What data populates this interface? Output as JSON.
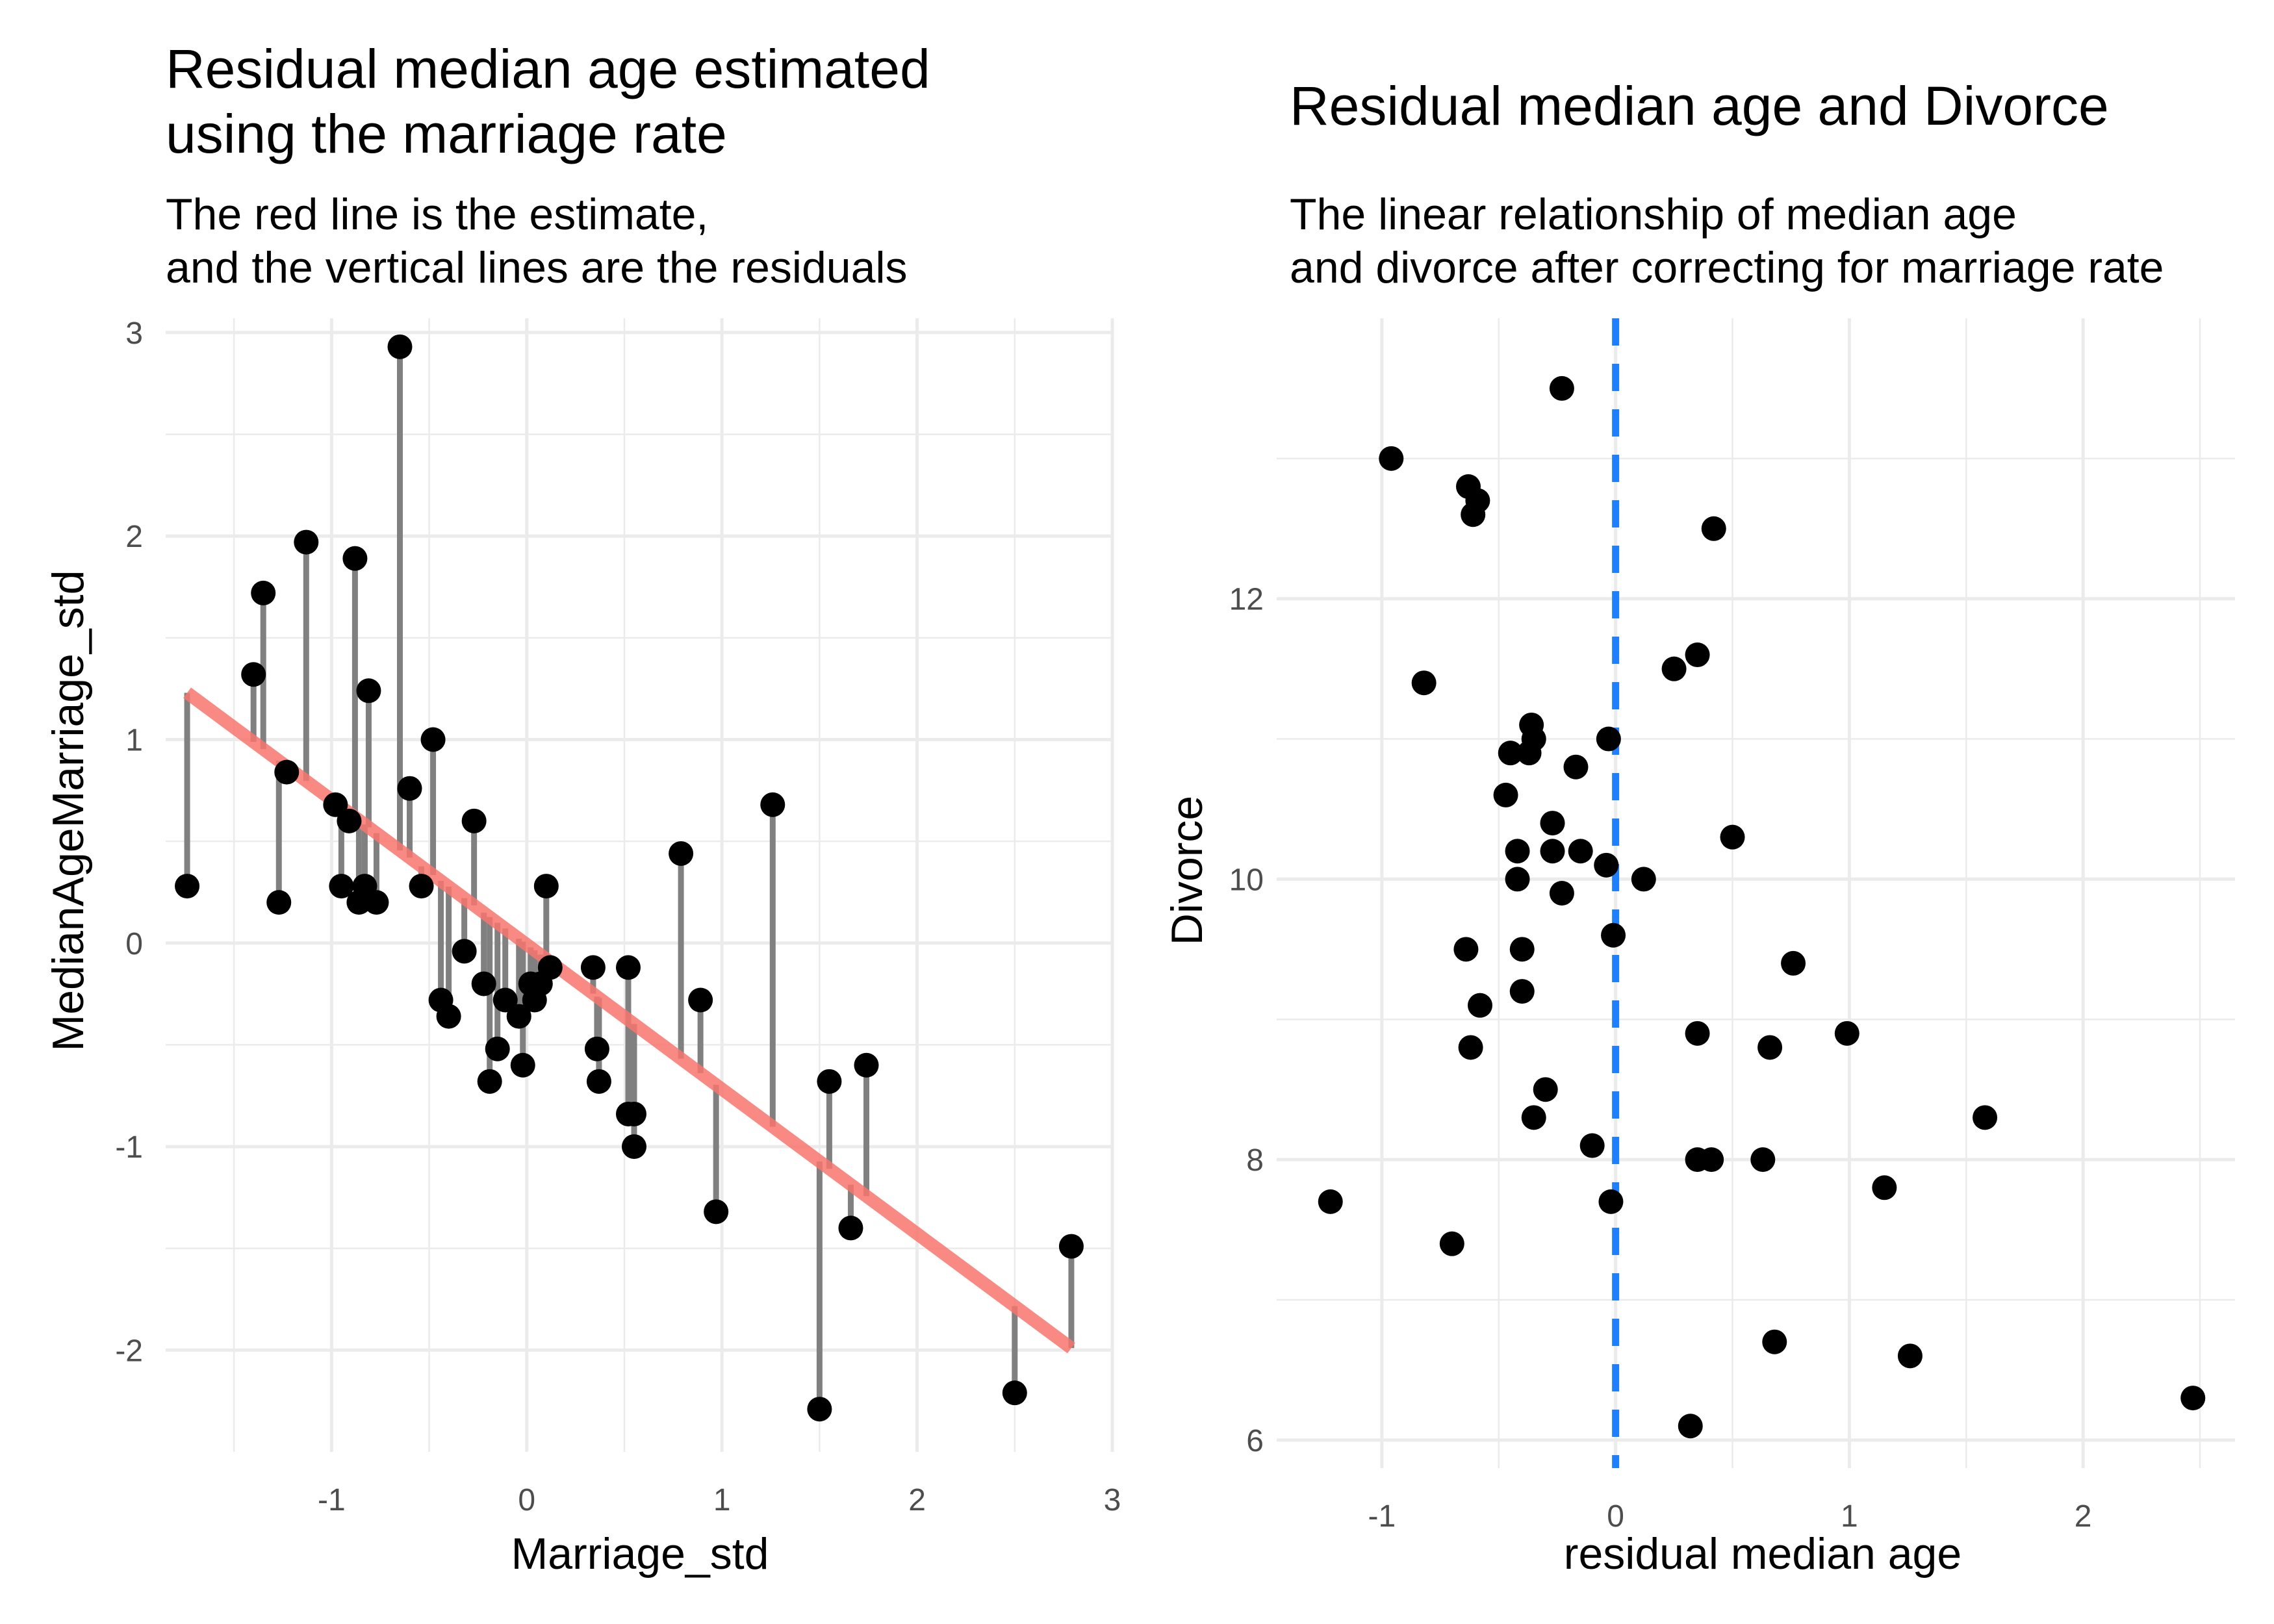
{
  "colors": {
    "residual_segment": "#808080",
    "fit_line": "#F8766D",
    "points": "#000000",
    "zero_line": "#1E7FFF",
    "grid": "#EBEBEB"
  },
  "chart_data": [
    {
      "type": "scatter",
      "title_lines": [
        "Residual median age estimated",
        "using the marriage rate"
      ],
      "subtitle_lines": [
        "The red line is the estimate,",
        "and the vertical lines are the residuals"
      ],
      "xlabel": "Marriage_std",
      "ylabel": "MedianAgeMarriage_std",
      "xlim": [
        -1.85,
        3.0
      ],
      "ylim": [
        -2.5,
        3.07
      ],
      "xticks": [
        -1,
        0,
        1,
        2,
        3
      ],
      "xtick_labels": [
        "-1",
        "0",
        "1",
        "2",
        "3"
      ],
      "yticks": [
        -2,
        -1,
        0,
        1,
        2,
        3
      ],
      "ytick_labels": [
        "-2",
        "-1",
        "0",
        "1",
        "2",
        "3"
      ],
      "grid": true,
      "fit_line": {
        "x": [
          -1.74,
          2.79
        ],
        "y": [
          1.23,
          -1.99
        ]
      },
      "points": {
        "x": [
          -1.74,
          -1.4,
          -1.35,
          -1.27,
          -1.23,
          -1.13,
          -0.98,
          -0.95,
          -0.91,
          -0.88,
          -0.86,
          -0.83,
          -0.81,
          -0.77,
          -0.65,
          -0.6,
          -0.54,
          -0.48,
          -0.44,
          -0.4,
          -0.32,
          -0.27,
          -0.22,
          -0.19,
          -0.15,
          -0.11,
          -0.04,
          -0.02,
          0.02,
          0.04,
          0.07,
          0.1,
          0.12,
          0.34,
          0.36,
          0.37,
          0.52,
          0.52,
          0.55,
          0.55,
          0.79,
          0.89,
          0.97,
          1.26,
          1.5,
          1.55,
          1.66,
          1.74,
          2.5,
          2.79
        ],
        "y": [
          0.28,
          1.32,
          1.72,
          0.2,
          0.84,
          1.97,
          0.68,
          0.28,
          0.6,
          1.89,
          0.2,
          0.28,
          1.24,
          0.2,
          2.93,
          0.76,
          0.28,
          1.0,
          -0.28,
          -0.36,
          -0.04,
          0.6,
          -0.2,
          -0.68,
          -0.52,
          -0.28,
          -0.36,
          -0.6,
          -0.2,
          -0.28,
          -0.2,
          0.28,
          -0.12,
          -0.12,
          -0.52,
          -0.68,
          -0.12,
          -0.84,
          -1.0,
          -0.84,
          0.44,
          -0.28,
          -1.32,
          0.68,
          -2.29,
          -0.68,
          -1.4,
          -0.6,
          -2.21,
          -1.49
        ]
      }
    },
    {
      "type": "scatter",
      "title_lines": [
        "Residual median age and Divorce"
      ],
      "subtitle_lines": [
        "The linear relationship of median age",
        "and divorce after correcting for marriage rate"
      ],
      "xlabel": "residual median age",
      "ylabel": "Divorce",
      "xlim": [
        -1.45,
        2.65
      ],
      "ylim": [
        5.8,
        14.0
      ],
      "xticks": [
        -1,
        0,
        1,
        2
      ],
      "xtick_labels": [
        "-1",
        "0",
        "1",
        "2"
      ],
      "yticks": [
        6,
        8,
        10,
        12
      ],
      "ytick_labels": [
        "6",
        "8",
        "10",
        "12"
      ],
      "grid": true,
      "vline": {
        "x": 0,
        "style": "dashed"
      },
      "points": {
        "x": [
          -0.23,
          -0.96,
          -0.63,
          -0.59,
          -0.61,
          0.42,
          -0.82,
          0.25,
          0.35,
          -0.36,
          -0.45,
          -0.35,
          -0.37,
          -0.03,
          -0.17,
          -0.47,
          -0.27,
          -0.42,
          -0.27,
          -0.15,
          0.5,
          -0.04,
          -0.42,
          0.12,
          -0.23,
          -0.64,
          -0.4,
          -0.01,
          0.76,
          -0.4,
          -0.58,
          0.35,
          0.99,
          -0.62,
          0.66,
          -0.3,
          -0.35,
          1.58,
          -0.1,
          0.35,
          0.41,
          0.63,
          1.15,
          -1.22,
          -0.02,
          -0.7,
          0.68,
          1.26,
          2.47,
          0.32
        ],
        "y": [
          13.5,
          13.0,
          12.8,
          12.7,
          12.6,
          12.5,
          11.4,
          11.5,
          11.6,
          11.1,
          10.9,
          11.0,
          10.9,
          11.0,
          10.8,
          10.6,
          10.4,
          10.2,
          10.2,
          10.2,
          10.3,
          10.1,
          10.0,
          10.0,
          9.9,
          9.5,
          9.5,
          9.6,
          9.4,
          9.2,
          9.1,
          8.9,
          8.9,
          8.8,
          8.8,
          8.5,
          8.3,
          8.3,
          8.1,
          8.0,
          8.0,
          8.0,
          7.8,
          7.7,
          7.7,
          7.4,
          6.7,
          6.6,
          6.3,
          6.1
        ]
      }
    }
  ]
}
